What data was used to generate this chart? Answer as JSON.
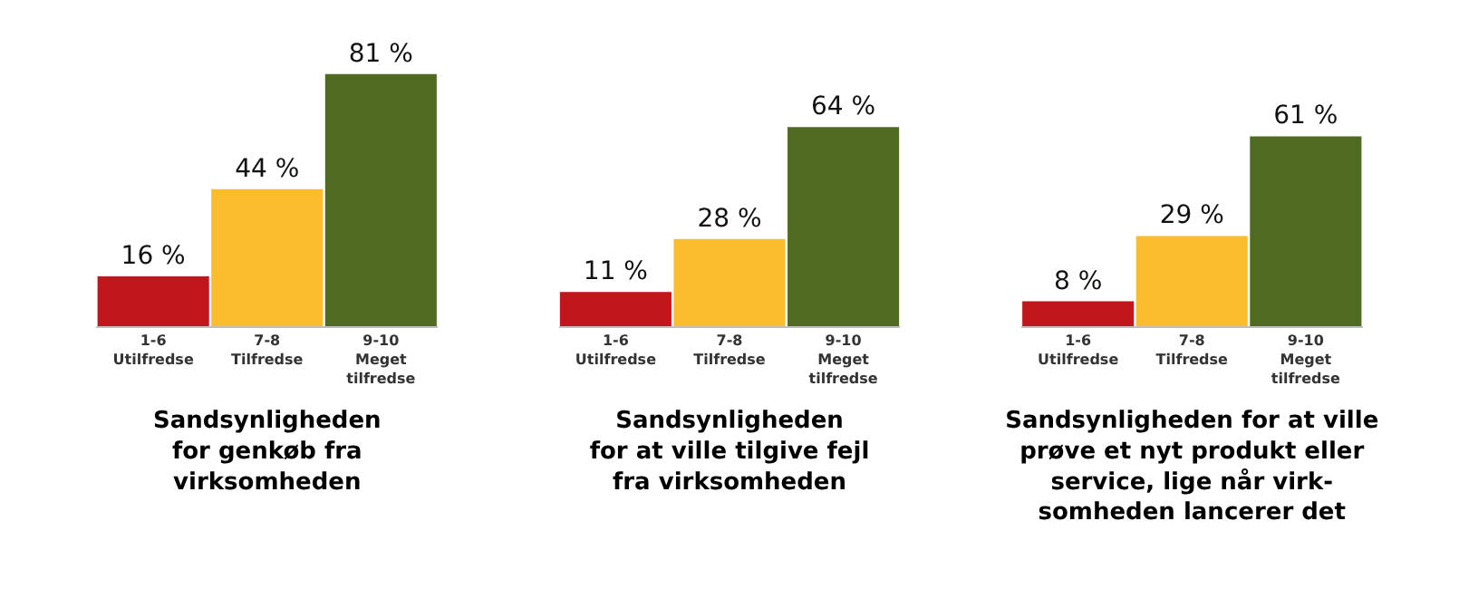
{
  "chart_data": [
    {
      "type": "bar",
      "relative": false,
      "categories": [
        "1-6\nUtilfredse",
        "7-8\nTilfredse",
        "9-10\nMeget\ntilfredse"
      ],
      "values": [
        16,
        44,
        81
      ],
      "colors": [
        "#c0161c",
        "#fbbd2e",
        "#4f6b22"
      ],
      "value_labels": [
        "16 %",
        "44 %",
        "81 %"
      ],
      "xlabel": "Sandsynligheden\nfor genkøb fra\nvirksomheden"
    },
    {
      "type": "bar",
      "relative": false,
      "categories": [
        "1-6\nUtilfredse",
        "7-8\nTilfredse",
        "9-10\nMeget\ntilfredse"
      ],
      "values": [
        11,
        28,
        64
      ],
      "colors": [
        "#c0161c",
        "#fbbd2e",
        "#4f6b22"
      ],
      "value_labels": [
        "11 %",
        "28 %",
        "64 %"
      ],
      "xlabel": "Sandsynligheden\nfor at ville tilgive fejl\nfra virksomheden"
    },
    {
      "type": "bar",
      "relative": false,
      "categories": [
        "1-6\nUtilfredse",
        "7-8\nTilfredse",
        "9-10\nMeget\ntilfredse"
      ],
      "values": [
        8,
        29,
        61
      ],
      "colors": [
        "#c0161c",
        "#fbbd2e",
        "#4f6b22"
      ],
      "value_labels": [
        "8 %",
        "29 %",
        "61 %"
      ],
      "xlabel": "Sandsynligheden for at ville\nprøve et nyt produkt eller\nservice, lige når virk-\nsomheden lancerer det"
    }
  ]
}
